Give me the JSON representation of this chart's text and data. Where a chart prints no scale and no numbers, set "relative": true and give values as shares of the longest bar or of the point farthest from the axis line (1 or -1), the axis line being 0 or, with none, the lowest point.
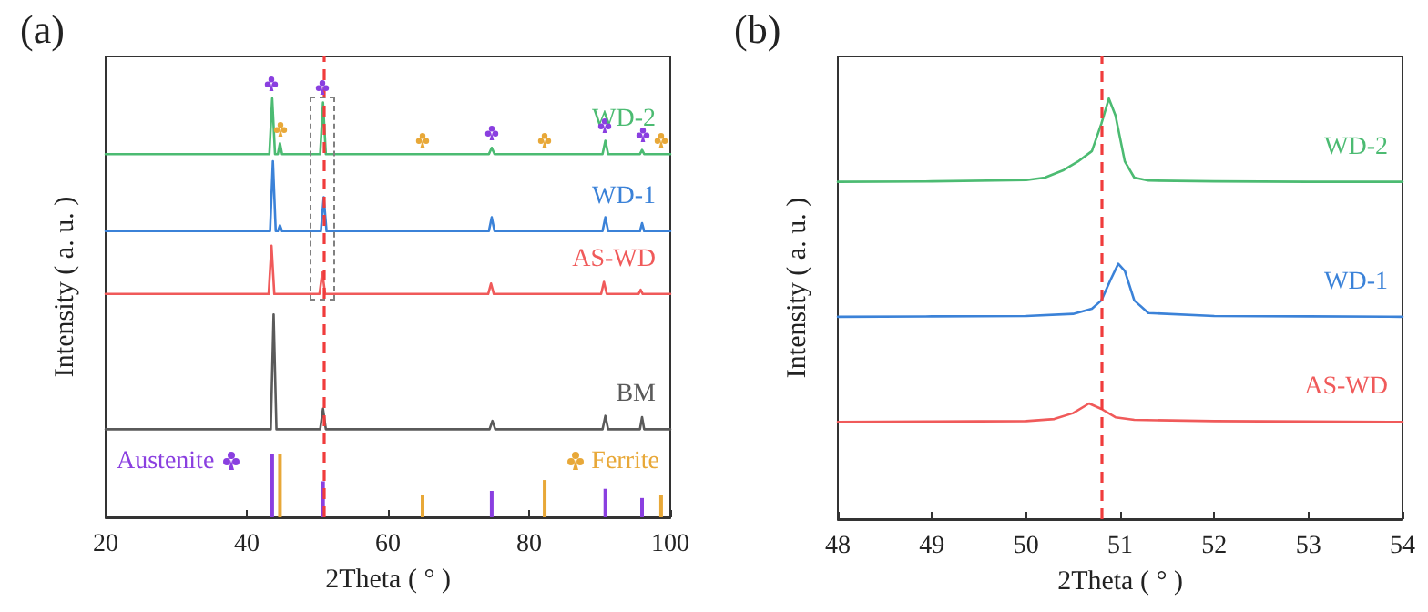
{
  "chart_data": [
    {
      "type": "line",
      "title": "(a)",
      "xlabel": "2Theta ( ° )",
      "ylabel": "Intensity ( a. u. )",
      "relative": true,
      "xlim": [
        20,
        100
      ],
      "xticks": [
        20,
        40,
        60,
        80,
        100
      ],
      "legend": "bottom",
      "grid": false,
      "marker": "none",
      "series": [
        {
          "name": "WD-2",
          "color": "#4cbb72",
          "x": [
            20,
            43.2,
            43.6,
            44.0,
            44.4,
            44.7,
            45.0,
            50.4,
            50.8,
            51.2,
            74.3,
            74.7,
            75.1,
            90.4,
            90.8,
            91.2,
            95.7,
            96.0,
            96.3,
            100
          ],
          "values": [
            0.867,
            0.867,
            1.0,
            0.867,
            0.867,
            0.893,
            0.867,
            0.867,
            0.99,
            0.867,
            0.867,
            0.882,
            0.867,
            0.867,
            0.899,
            0.867,
            0.867,
            0.877,
            0.867,
            0.867
          ]
        },
        {
          "name": "WD-1",
          "color": "#3b82d8",
          "x": [
            20,
            43.3,
            43.7,
            44.1,
            44.4,
            44.7,
            45.0,
            50.5,
            50.9,
            51.3,
            74.3,
            74.7,
            75.1,
            90.4,
            90.8,
            91.2,
            95.7,
            96.0,
            96.3,
            100
          ],
          "values": [
            0.683,
            0.683,
            0.85,
            0.683,
            0.683,
            0.697,
            0.683,
            0.683,
            0.764,
            0.683,
            0.683,
            0.716,
            0.683,
            0.683,
            0.716,
            0.683,
            0.683,
            0.702,
            0.683,
            0.683
          ]
        },
        {
          "name": "AS-WD",
          "color": "#f05a5a",
          "x": [
            20,
            43.1,
            43.5,
            43.9,
            50.3,
            50.7,
            51.1,
            74.2,
            74.6,
            75.0,
            90.2,
            90.6,
            91.0,
            95.5,
            95.8,
            96.1,
            100
          ],
          "values": [
            0.533,
            0.533,
            0.648,
            0.533,
            0.533,
            0.584,
            0.533,
            0.533,
            0.558,
            0.533,
            0.533,
            0.562,
            0.533,
            0.533,
            0.543,
            0.533,
            0.533
          ]
        },
        {
          "name": "BM",
          "color": "#5a5a5a",
          "x": [
            20,
            43.4,
            43.8,
            44.2,
            50.4,
            50.8,
            51.2,
            74.4,
            74.8,
            75.2,
            90.4,
            90.8,
            91.2,
            95.7,
            96.0,
            96.3,
            100
          ],
          "values": [
            0.21,
            0.21,
            0.484,
            0.21,
            0.21,
            0.259,
            0.21,
            0.21,
            0.23,
            0.21,
            0.21,
            0.242,
            0.21,
            0.21,
            0.239,
            0.21,
            0.21
          ]
        },
        {
          "name": "Austenite",
          "type": "bar",
          "color": "#8a3fe0",
          "x": [
            43.6,
            50.8,
            74.7,
            90.8,
            96.0
          ],
          "values": [
            0.15,
            0.086,
            0.063,
            0.068,
            0.046
          ]
        },
        {
          "name": "Ferrite",
          "type": "bar",
          "color": "#e8a838",
          "x": [
            44.7,
            64.9,
            82.2,
            98.7
          ],
          "values": [
            0.15,
            0.053,
            0.089,
            0.053
          ]
        }
      ],
      "ref_lines": [
        {
          "axis": "x",
          "value": 50.8,
          "color": "#f03c3c",
          "line_style": "dashed"
        }
      ]
    },
    {
      "type": "line",
      "title": "(b)",
      "xlabel": "2Theta ( ° )",
      "ylabel": "Intensity ( a. u. )",
      "relative": true,
      "xlim": [
        48,
        54
      ],
      "xticks": [
        48,
        49,
        50,
        51,
        52,
        53,
        54
      ],
      "legend": false,
      "grid": false,
      "marker": "none",
      "series": [
        {
          "name": "WD-2",
          "color": "#4cbb72",
          "x": [
            48,
            49,
            50,
            50.2,
            50.4,
            50.55,
            50.7,
            50.8,
            50.88,
            50.95,
            51.05,
            51.15,
            51.3,
            52,
            53,
            54
          ],
          "values": [
            0.802,
            0.803,
            0.806,
            0.812,
            0.83,
            0.85,
            0.875,
            0.94,
            1.0,
            0.96,
            0.85,
            0.812,
            0.805,
            0.803,
            0.802,
            0.802
          ]
        },
        {
          "name": "WD-1",
          "color": "#3b82d8",
          "x": [
            48,
            49,
            50,
            50.5,
            50.7,
            50.8,
            50.9,
            50.98,
            51.05,
            51.15,
            51.3,
            52,
            53,
            54
          ],
          "values": [
            0.481,
            0.482,
            0.483,
            0.488,
            0.5,
            0.52,
            0.57,
            0.607,
            0.59,
            0.52,
            0.49,
            0.483,
            0.482,
            0.481
          ]
        },
        {
          "name": "AS-WD",
          "color": "#f05a5a",
          "x": [
            48,
            49,
            50,
            50.3,
            50.5,
            50.67,
            50.8,
            50.95,
            51.15,
            52,
            53,
            54
          ],
          "values": [
            0.231,
            0.232,
            0.233,
            0.238,
            0.252,
            0.275,
            0.262,
            0.242,
            0.236,
            0.233,
            0.232,
            0.231
          ]
        }
      ],
      "ref_lines": [
        {
          "axis": "x",
          "value": 50.8,
          "color": "#f03c3c",
          "line_style": "dashed"
        }
      ]
    }
  ]
}
